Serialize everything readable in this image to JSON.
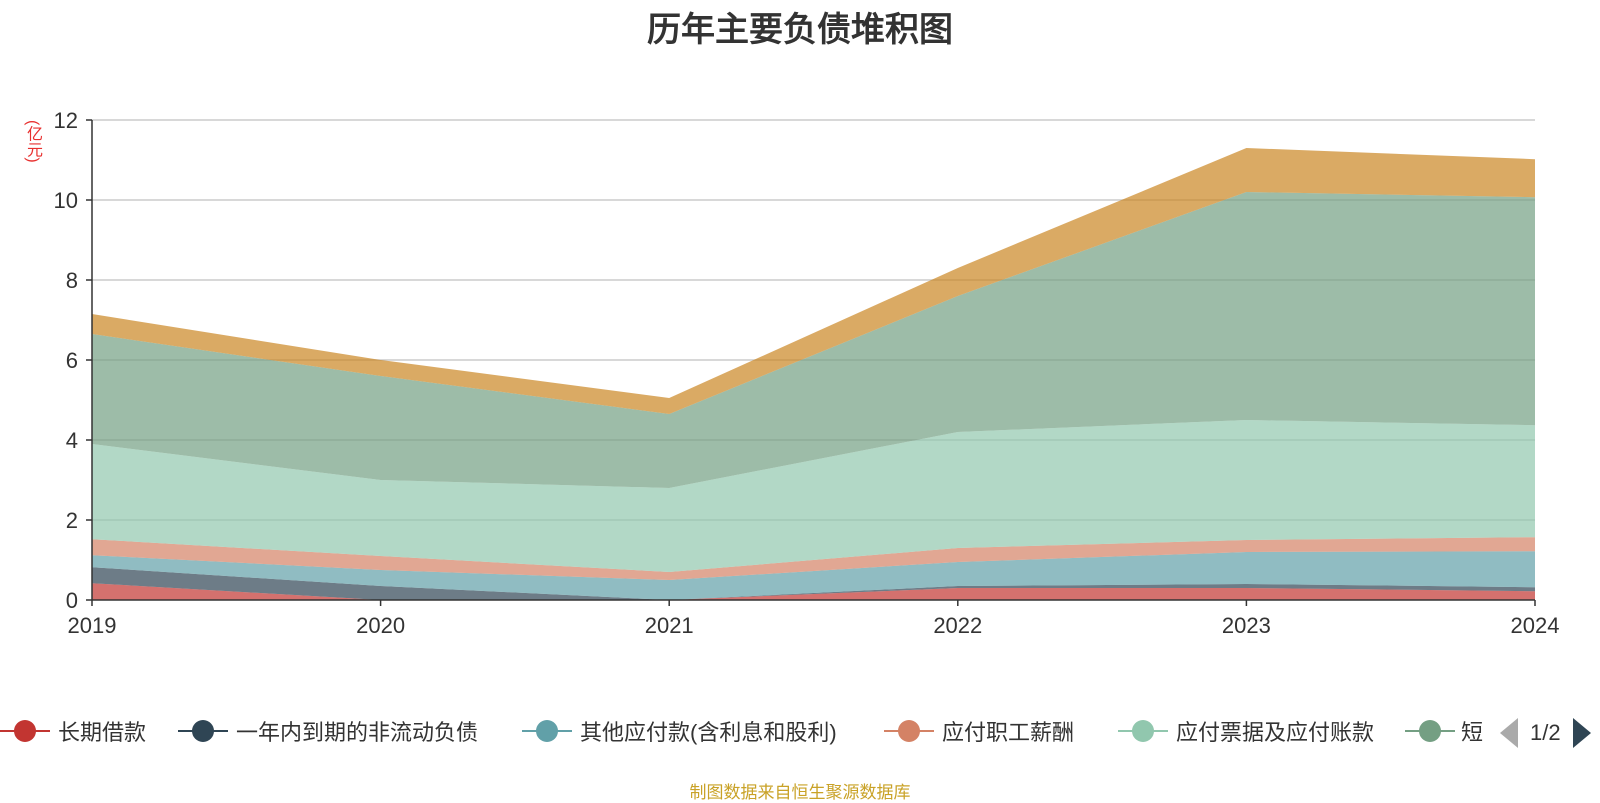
{
  "title": "历年主要负债堆积图",
  "unit_label": "(亿元)",
  "source": "制图数据来自恒生聚源数据库",
  "chart_data": {
    "type": "area",
    "stacked": true,
    "title": "历年主要负债堆积图",
    "ylabel": "(亿元)",
    "categories": [
      "2019",
      "2020",
      "2021",
      "2022",
      "2023",
      "2024"
    ],
    "ylim": [
      0,
      12
    ],
    "yticks": [
      0,
      2,
      4,
      6,
      8,
      10,
      12
    ],
    "grid": true,
    "legend_position": "bottom",
    "series": [
      {
        "name": "长期借款",
        "color": "#c23531",
        "values": [
          0.42,
          0.0,
          0.0,
          0.3,
          0.3,
          0.22
        ]
      },
      {
        "name": "一年内到期的非流动负债",
        "color": "#2f4554",
        "values": [
          0.4,
          0.35,
          0.0,
          0.05,
          0.1,
          0.1
        ]
      },
      {
        "name": "其他应付款(含利息和股利)",
        "color": "#61a0a8",
        "values": [
          0.3,
          0.4,
          0.5,
          0.6,
          0.8,
          0.9
        ]
      },
      {
        "name": "应付职工薪酬",
        "color": "#d48265",
        "values": [
          0.4,
          0.35,
          0.2,
          0.35,
          0.3,
          0.35
        ]
      },
      {
        "name": "应付票据及应付账款",
        "color": "#91c7ae",
        "values": [
          2.38,
          1.9,
          2.1,
          2.9,
          3.0,
          2.8
        ]
      },
      {
        "name": "短期借款",
        "color": "#749f83",
        "values": [
          2.75,
          2.6,
          1.85,
          3.4,
          5.7,
          5.7
        ]
      },
      {
        "name": "",
        "color": "#ca8622",
        "values": [
          0.5,
          0.4,
          0.4,
          0.7,
          1.1,
          0.95
        ]
      }
    ]
  },
  "legend": {
    "items": [
      {
        "label": "长期借款",
        "color": "#c23531"
      },
      {
        "label": "一年内到期的非流动负债",
        "color": "#2f4554"
      },
      {
        "label": "其他应付款(含利息和股利)",
        "color": "#61a0a8"
      },
      {
        "label": "应付职工薪酬",
        "color": "#d48265"
      },
      {
        "label": "应付票据及应付账款",
        "color": "#91c7ae"
      },
      {
        "label": "短",
        "color": "#749f83"
      }
    ],
    "page": "1/2"
  }
}
